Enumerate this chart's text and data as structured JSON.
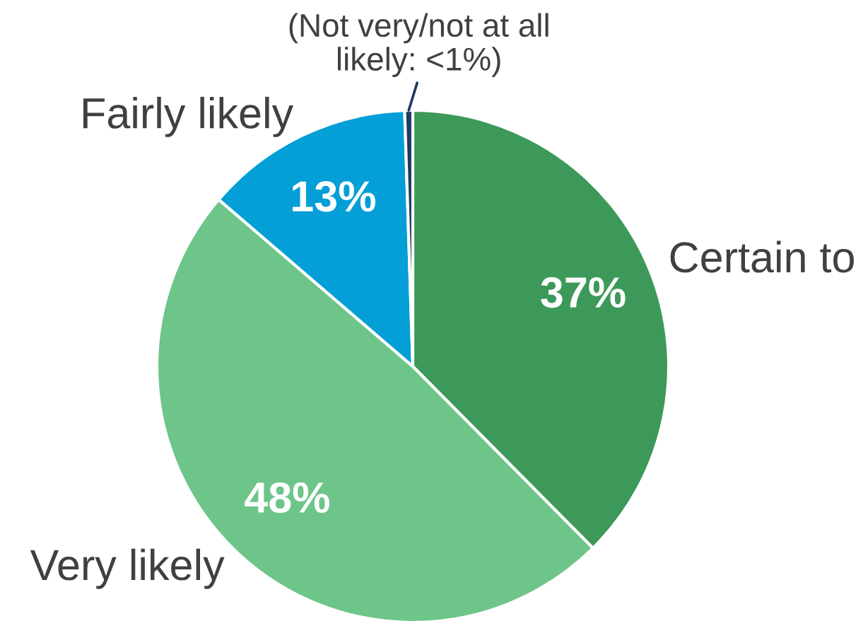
{
  "chart_data": {
    "type": "pie",
    "categories": [
      "Certain to",
      "Very likely",
      "Fairly likely",
      "(Not very/not at all\nlikely: <1%)"
    ],
    "values": [
      37,
      48,
      13,
      0.5
    ],
    "colors": [
      "#3d9959",
      "#6ec589",
      "#039fd6",
      "#1f3864"
    ],
    "value_labels": [
      "37%",
      "48%",
      "13%",
      null
    ]
  }
}
